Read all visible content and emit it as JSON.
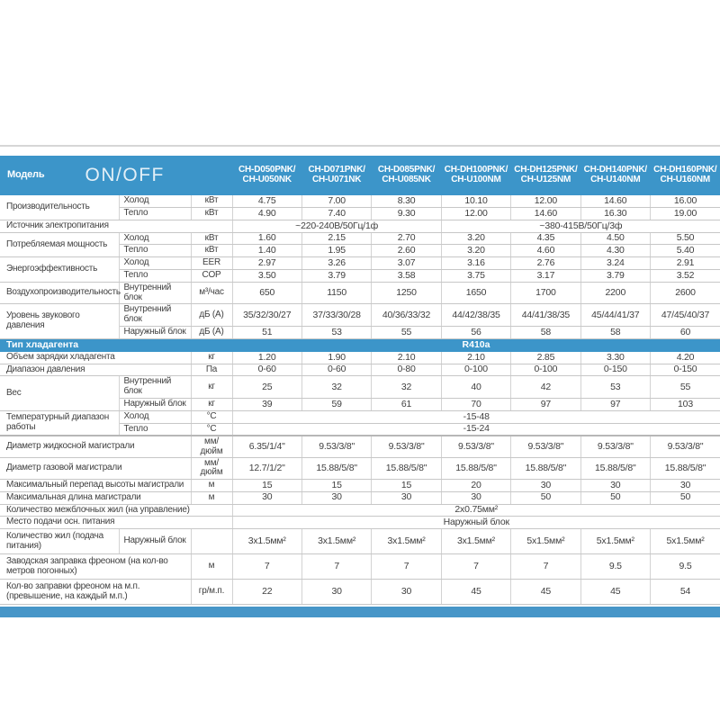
{
  "colors": {
    "header_blue": "#3c95c9",
    "band_blue": "#3c95c9",
    "bar_blue": "#4796c8",
    "text": "#3f3f3f",
    "header_text": "#ffffff"
  },
  "header": {
    "model_label": "Модель",
    "series_label": "ON/OFF",
    "models": [
      "CH-D050PNK/\nCH-U050NK",
      "CH-D071PNK/\nCH-U071NK",
      "CH-D085PNK/\nCH-U085NK",
      "CH-DH100PNK/\nCH-U100NM",
      "CH-DH125PNK/\nCH-U125NM",
      "CH-DH140PNK/\nCH-U140NM",
      "CH-DH160PNK/\nCH-U160NM"
    ]
  },
  "rows": [
    {
      "cells": [
        {
          "t": "Производительность",
          "cls": "name",
          "rs": 2
        },
        {
          "t": "Холод",
          "cls": "sub"
        },
        {
          "t": "кВт",
          "cls": "unit"
        },
        "4.75",
        "7.00",
        "8.30",
        "10.10",
        "12.00",
        "14.60",
        "16.00"
      ]
    },
    {
      "cells": [
        {
          "t": "Тепло",
          "cls": "sub"
        },
        {
          "t": "кВт",
          "cls": "unit"
        },
        "4.90",
        "7.40",
        "9.30",
        "12.00",
        "14.60",
        "16.30",
        "19.00"
      ]
    },
    {
      "cells": [
        {
          "t": "Источник электропитания",
          "cls": "name",
          "cs": 3
        },
        {
          "t": "~220-240В/50Гц/1ф",
          "cls": "val",
          "cs": 3
        },
        {
          "t": "~380-415В/50Гц/3ф",
          "cls": "val",
          "cs": 4
        }
      ]
    },
    {
      "cells": [
        {
          "t": "Потребляемая мощность",
          "cls": "name",
          "rs": 2
        },
        {
          "t": "Холод",
          "cls": "sub"
        },
        {
          "t": "кВт",
          "cls": "unit"
        },
        "1.60",
        "2.15",
        "2.70",
        "3.20",
        "4.35",
        "4.50",
        "5.50"
      ]
    },
    {
      "cells": [
        {
          "t": "Тепло",
          "cls": "sub"
        },
        {
          "t": "кВт",
          "cls": "unit"
        },
        "1.40",
        "1.95",
        "2.60",
        "3.20",
        "4.60",
        "4.30",
        "5.40"
      ]
    },
    {
      "cells": [
        {
          "t": "Энергоэффективность",
          "cls": "name",
          "rs": 2
        },
        {
          "t": "Холод",
          "cls": "sub"
        },
        {
          "t": "EER",
          "cls": "unit"
        },
        "2.97",
        "3.26",
        "3.07",
        "3.16",
        "2.76",
        "3.24",
        "2.91"
      ]
    },
    {
      "cells": [
        {
          "t": "Тепло",
          "cls": "sub"
        },
        {
          "t": "COP",
          "cls": "unit"
        },
        "3.50",
        "3.79",
        "3.58",
        "3.75",
        "3.17",
        "3.79",
        "3.52"
      ]
    },
    {
      "cells": [
        {
          "t": "Воздухопроизводительность",
          "cls": "name"
        },
        {
          "t": "Внутренний блок",
          "cls": "sub"
        },
        {
          "t": "м³/час",
          "cls": "unit"
        },
        "650",
        "1150",
        "1250",
        "1650",
        "1700",
        "2200",
        "2600"
      ]
    },
    {
      "cells": [
        {
          "t": "Уровень звукового давления",
          "cls": "name",
          "rs": 2
        },
        {
          "t": "Внутренний блок",
          "cls": "sub"
        },
        {
          "t": "дБ (А)",
          "cls": "unit"
        },
        "35/32/30/27",
        "37/33/30/28",
        "40/36/33/32",
        "44/42/38/35",
        "44/41/38/35",
        "45/44/41/37",
        "47/45/40/37"
      ]
    },
    {
      "cells": [
        {
          "t": "Наружный блок",
          "cls": "sub"
        },
        {
          "t": "дБ (А)",
          "cls": "unit"
        },
        "51",
        "53",
        "55",
        "56",
        "58",
        "58",
        "60"
      ]
    },
    {
      "row_cls": "band-row",
      "cells": [
        {
          "t": "Тип хладагента",
          "cls": "band-label",
          "cs": 3
        },
        {
          "t": "R410a",
          "cls": "band-val",
          "cs": 7
        }
      ]
    },
    {
      "cells": [
        {
          "t": "Объем зарядки хладагента",
          "cls": "name",
          "cs": 2
        },
        {
          "t": "кг",
          "cls": "unit"
        },
        "1.20",
        "1.90",
        "2.10",
        "2.10",
        "2.85",
        "3.30",
        "4.20"
      ]
    },
    {
      "cells": [
        {
          "t": "Диапазон давления",
          "cls": "name",
          "cs": 2
        },
        {
          "t": "Па",
          "cls": "unit"
        },
        "0-60",
        "0-60",
        "0-80",
        "0-100",
        "0-100",
        "0-150",
        "0-150"
      ]
    },
    {
      "cells": [
        {
          "t": "Вес",
          "cls": "name",
          "rs": 2
        },
        {
          "t": "Внутренний блок",
          "cls": "sub"
        },
        {
          "t": "кг",
          "cls": "unit"
        },
        "25",
        "32",
        "32",
        "40",
        "42",
        "53",
        "55"
      ]
    },
    {
      "cells": [
        {
          "t": "Наружный блок",
          "cls": "sub"
        },
        {
          "t": "кг",
          "cls": "unit"
        },
        "39",
        "59",
        "61",
        "70",
        "97",
        "97",
        "103"
      ]
    },
    {
      "cells": [
        {
          "t": "Температурный диапазон работы",
          "cls": "name",
          "rs": 2
        },
        {
          "t": "Холод",
          "cls": "sub"
        },
        {
          "t": "°C",
          "cls": "unit"
        },
        {
          "t": "-15-48",
          "cls": "val",
          "cs": 7
        }
      ]
    },
    {
      "cells": [
        {
          "t": "Тепло",
          "cls": "sub"
        },
        {
          "t": "°C",
          "cls": "unit"
        },
        {
          "t": "-15-24",
          "cls": "val",
          "cs": 7
        }
      ]
    },
    {
      "row_cls": "t24 thick",
      "cells": [
        {
          "t": "Диаметр жидкосной магистрали",
          "cls": "name",
          "cs": 2
        },
        {
          "t": "мм/\nдюйм",
          "cls": "unit"
        },
        "6.35/1/4\"",
        "9.53/3/8\"",
        "9.53/3/8\"",
        "9.53/3/8\"",
        "9.53/3/8\"",
        "9.53/3/8\"",
        "9.53/3/8\""
      ]
    },
    {
      "row_cls": "t24",
      "cells": [
        {
          "t": "Диаметр газовой магистрали",
          "cls": "name",
          "cs": 2
        },
        {
          "t": "мм/\nдюйм",
          "cls": "unit"
        },
        "12.7/1/2\"",
        "15.88/5/8\"",
        "15.88/5/8\"",
        "15.88/5/8\"",
        "15.88/5/8\"",
        "15.88/5/8\"",
        "15.88/5/8\""
      ]
    },
    {
      "cells": [
        {
          "t": "Максимальный перепад высоты магистрали",
          "cls": "name",
          "cs": 2
        },
        {
          "t": "м",
          "cls": "unit"
        },
        "15",
        "15",
        "15",
        "20",
        "30",
        "30",
        "30"
      ]
    },
    {
      "cells": [
        {
          "t": "Максимальная длина магистрали",
          "cls": "name",
          "cs": 2
        },
        {
          "t": "м",
          "cls": "unit"
        },
        "30",
        "30",
        "30",
        "30",
        "50",
        "50",
        "50"
      ]
    },
    {
      "cells": [
        {
          "t": "Количество межблочных жил (на управление)",
          "cls": "name",
          "cs": 3
        },
        {
          "t": "2х0.75мм²",
          "cls": "val",
          "cs": 7
        }
      ]
    },
    {
      "cells": [
        {
          "t": "Место подачи осн. питания",
          "cls": "name",
          "cs": 3
        },
        {
          "t": "Наружный блок",
          "cls": "val",
          "cs": 7
        }
      ]
    },
    {
      "row_cls": "t28",
      "cells": [
        {
          "t": "Количество жил (подача питания)",
          "cls": "name"
        },
        {
          "t": "Наружный блок",
          "cls": "sub"
        },
        {
          "t": "",
          "cls": "unit"
        },
        "3х1.5мм²",
        "3х1.5мм²",
        "3х1.5мм²",
        "3х1.5мм²",
        "5х1.5мм²",
        "5х1.5мм²",
        "5х1.5мм²"
      ]
    },
    {
      "row_cls": "t28",
      "cells": [
        {
          "t": "Заводская заправка фреоном (на кол-во метров погонных)",
          "cls": "name",
          "cs": 2
        },
        {
          "t": "м",
          "cls": "unit"
        },
        "7",
        "7",
        "7",
        "7",
        "7",
        "9.5",
        "9.5"
      ]
    },
    {
      "row_cls": "t28",
      "cells": [
        {
          "t": "Кол-во заправки фреоном на м.п. (превышение, на каждый м.п.)",
          "cls": "name",
          "cs": 2
        },
        {
          "t": "гр/м.п.",
          "cls": "unit"
        },
        "22",
        "30",
        "30",
        "45",
        "45",
        "45",
        "54"
      ]
    }
  ]
}
